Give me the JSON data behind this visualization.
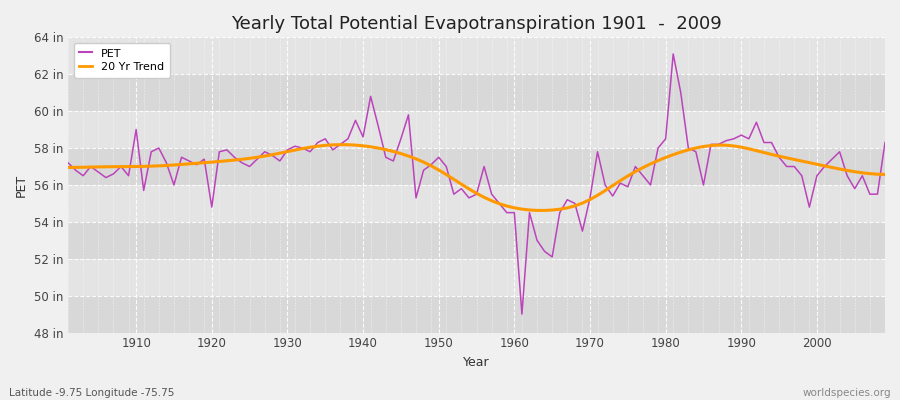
{
  "title": "Yearly Total Potential Evapotranspiration 1901  -  2009",
  "xlabel": "Year",
  "ylabel": "PET",
  "x_label_bottom": "Latitude -9.75 Longitude -75.75",
  "x_label_right": "worldspecies.org",
  "bg_color": "#f0f0f0",
  "plot_bg_color": "#e0e0e0",
  "band_colors": [
    "#d8d8d8",
    "#e4e4e4"
  ],
  "line_color_pet": "#bb44bb",
  "line_color_trend": "#ff9900",
  "ylim": [
    48,
    64
  ],
  "yticks": [
    48,
    50,
    52,
    54,
    56,
    58,
    60,
    62,
    64
  ],
  "ytick_labels": [
    "48 in",
    "50 in",
    "52 in",
    "54 in",
    "56 in",
    "58 in",
    "60 in",
    "62 in",
    "64 in"
  ],
  "years": [
    1901,
    1902,
    1903,
    1904,
    1905,
    1906,
    1907,
    1908,
    1909,
    1910,
    1911,
    1912,
    1913,
    1914,
    1915,
    1916,
    1917,
    1918,
    1919,
    1920,
    1921,
    1922,
    1923,
    1924,
    1925,
    1926,
    1927,
    1928,
    1929,
    1930,
    1931,
    1932,
    1933,
    1934,
    1935,
    1936,
    1937,
    1938,
    1939,
    1940,
    1941,
    1942,
    1943,
    1944,
    1945,
    1946,
    1947,
    1948,
    1949,
    1950,
    1951,
    1952,
    1953,
    1954,
    1955,
    1956,
    1957,
    1958,
    1959,
    1960,
    1961,
    1962,
    1963,
    1964,
    1965,
    1966,
    1967,
    1968,
    1969,
    1970,
    1971,
    1972,
    1973,
    1974,
    1975,
    1976,
    1977,
    1978,
    1979,
    1980,
    1981,
    1982,
    1983,
    1984,
    1985,
    1986,
    1987,
    1988,
    1989,
    1990,
    1991,
    1992,
    1993,
    1994,
    1995,
    1996,
    1997,
    1998,
    1999,
    2000,
    2001,
    2002,
    2003,
    2004,
    2005,
    2006,
    2007,
    2008,
    2009
  ],
  "pet": [
    57.2,
    56.8,
    56.5,
    57.0,
    56.7,
    56.4,
    56.6,
    57.0,
    56.5,
    59.0,
    55.7,
    57.8,
    58.0,
    57.2,
    56.0,
    57.5,
    57.3,
    57.1,
    57.4,
    54.8,
    57.8,
    57.9,
    57.5,
    57.2,
    57.0,
    57.4,
    57.8,
    57.6,
    57.3,
    57.9,
    58.1,
    58.0,
    57.8,
    58.3,
    58.5,
    57.9,
    58.2,
    58.5,
    59.5,
    58.6,
    60.8,
    59.2,
    57.5,
    57.3,
    58.5,
    59.8,
    55.3,
    56.8,
    57.1,
    57.5,
    57.0,
    55.5,
    55.8,
    55.3,
    55.5,
    57.0,
    55.5,
    55.0,
    54.5,
    54.5,
    49.0,
    54.5,
    53.0,
    52.4,
    52.1,
    54.5,
    55.2,
    55.0,
    53.5,
    55.3,
    57.8,
    56.0,
    55.4,
    56.1,
    55.9,
    57.0,
    56.5,
    56.0,
    58.0,
    58.5,
    63.1,
    61.0,
    58.0,
    57.8,
    56.0,
    58.2,
    58.2,
    58.4,
    58.5,
    58.7,
    58.5,
    59.4,
    58.3,
    58.3,
    57.5,
    57.0,
    57.0,
    56.5,
    54.8,
    56.5,
    57.0,
    57.4,
    57.8,
    56.5,
    55.8,
    56.5,
    55.5,
    55.5,
    58.3
  ],
  "xticks": [
    1910,
    1920,
    1930,
    1940,
    1950,
    1960,
    1970,
    1980,
    1990,
    2000
  ],
  "legend_pet": "PET",
  "legend_trend": "20 Yr Trend",
  "title_fontsize": 13,
  "axis_fontsize": 8.5,
  "label_fontsize": 9
}
